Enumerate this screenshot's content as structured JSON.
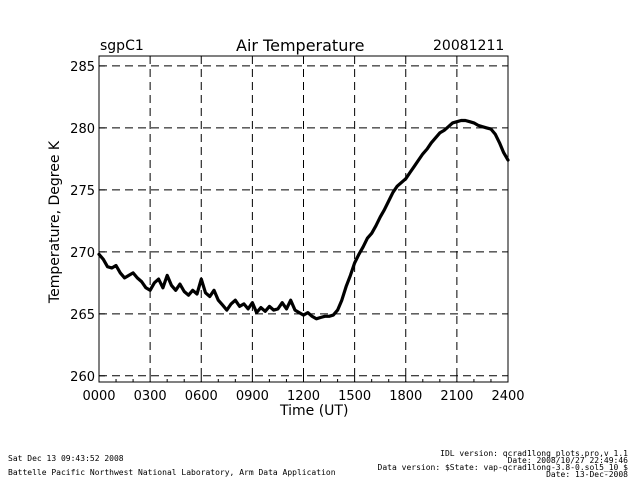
{
  "header": {
    "site": "sgpC1",
    "title": "Air Temperature",
    "date": "20081211"
  },
  "footer": {
    "left": [
      "Sat Dec 13 09:43:52 2008",
      "Battelle Pacific Northwest National Laboratory, Arm Data Application"
    ],
    "right": [
      "IDL version: qcrad1long_plots.pro,v 1.1",
      "Date: 2008/10/27 22:49:46",
      "Data version: $State: vap-qcrad1long-3.8-0.sol5_10 $",
      "Date: 13-Dec-2008"
    ]
  },
  "chart_data": {
    "type": "line",
    "title": "Air Temperature",
    "xlabel": "Time (UT)",
    "ylabel": "Temperature, Degree K",
    "xlim": [
      0,
      2400
    ],
    "ylim": [
      259.5,
      285.8
    ],
    "xticks": [
      "0000",
      "0300",
      "0600",
      "0900",
      "1200",
      "1500",
      "1800",
      "2100",
      "2400"
    ],
    "yticks": [
      "260",
      "265",
      "270",
      "275",
      "280",
      "285"
    ],
    "grid": "dashed",
    "line_color": "#000000",
    "series": [
      {
        "x": [
          0,
          25,
          50,
          75,
          100,
          125,
          150,
          175,
          200,
          225,
          250,
          275,
          300,
          325,
          350,
          375,
          400,
          425,
          450,
          475,
          500,
          525,
          550,
          575,
          600,
          625,
          650,
          675,
          700,
          725,
          750,
          775,
          800,
          825,
          850,
          875,
          900,
          925,
          950,
          975,
          1000,
          1025,
          1050,
          1075,
          1100,
          1125,
          1150,
          1175,
          1200,
          1225,
          1250,
          1275,
          1300,
          1325,
          1350,
          1375,
          1400,
          1425,
          1450,
          1475,
          1500,
          1525,
          1550,
          1575,
          1600,
          1625,
          1650,
          1675,
          1700,
          1725,
          1750,
          1775,
          1800,
          1825,
          1850,
          1875,
          1900,
          1925,
          1950,
          1975,
          2000,
          2025,
          2050,
          2075,
          2100,
          2125,
          2150,
          2175,
          2200,
          2225,
          2250,
          2275,
          2300,
          2325,
          2350,
          2375,
          2400
        ],
        "y": [
          269.8,
          269.4,
          268.8,
          268.7,
          268.9,
          268.3,
          267.9,
          268.1,
          268.3,
          267.9,
          267.6,
          267.1,
          266.9,
          267.5,
          267.8,
          267.1,
          268.1,
          267.3,
          266.9,
          267.4,
          266.8,
          266.5,
          266.9,
          266.6,
          267.8,
          266.7,
          266.4,
          266.9,
          266.1,
          265.7,
          265.3,
          265.8,
          266.1,
          265.6,
          265.8,
          265.4,
          265.9,
          265.1,
          265.5,
          265.2,
          265.6,
          265.3,
          265.4,
          265.9,
          265.4,
          266.1,
          265.3,
          265.1,
          264.9,
          265.1,
          264.8,
          264.6,
          264.7,
          264.8,
          264.8,
          264.9,
          265.3,
          266.1,
          267.2,
          268.1,
          269.1,
          269.8,
          270.4,
          271.1,
          271.5,
          272.1,
          272.8,
          273.4,
          274.1,
          274.8,
          275.3,
          275.6,
          275.9,
          276.4,
          276.9,
          277.4,
          277.9,
          278.3,
          278.8,
          279.2,
          279.6,
          279.8,
          280.1,
          280.4,
          280.5,
          280.6,
          280.6,
          280.5,
          280.4,
          280.2,
          280.1,
          280.0,
          279.9,
          279.5,
          278.8,
          278.0,
          277.4
        ]
      }
    ]
  }
}
